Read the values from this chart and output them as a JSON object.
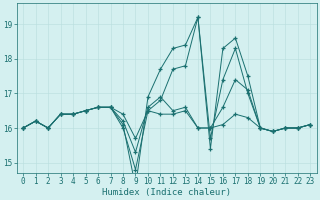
{
  "title": "",
  "xlabel": "Humidex (Indice chaleur)",
  "ylabel": "",
  "background_color": "#d4f0f0",
  "line_color": "#1a7070",
  "grid_color": "#b8dede",
  "x": [
    0,
    1,
    2,
    3,
    4,
    5,
    6,
    7,
    8,
    9,
    10,
    11,
    12,
    13,
    14,
    15,
    16,
    17,
    18,
    19,
    20,
    21,
    22,
    23
  ],
  "series": [
    [
      16.0,
      16.2,
      16.0,
      16.4,
      16.4,
      16.5,
      16.6,
      16.6,
      16.0,
      14.8,
      16.5,
      16.8,
      17.7,
      17.8,
      19.2,
      15.7,
      17.4,
      18.3,
      17.0,
      16.0,
      15.9,
      16.0,
      16.0,
      16.1
    ],
    [
      16.0,
      16.2,
      16.0,
      16.4,
      16.4,
      16.5,
      16.6,
      16.6,
      16.2,
      15.3,
      16.6,
      16.9,
      16.5,
      16.6,
      16.0,
      16.0,
      16.6,
      17.4,
      17.1,
      16.0,
      15.9,
      16.0,
      16.0,
      16.1
    ],
    [
      16.0,
      16.2,
      16.0,
      16.4,
      16.4,
      16.5,
      16.6,
      16.6,
      16.4,
      15.7,
      16.5,
      16.4,
      16.4,
      16.5,
      16.0,
      16.0,
      16.1,
      16.4,
      16.3,
      16.0,
      15.9,
      16.0,
      16.0,
      16.1
    ],
    [
      16.0,
      16.2,
      16.0,
      16.4,
      16.4,
      16.5,
      16.6,
      16.6,
      16.1,
      14.3,
      16.9,
      17.7,
      18.3,
      18.4,
      19.2,
      15.4,
      18.3,
      18.6,
      17.5,
      16.0,
      15.9,
      16.0,
      16.0,
      16.1
    ]
  ],
  "ylim": [
    14.7,
    19.6
  ],
  "yticks": [
    15,
    16,
    17,
    18,
    19
  ],
  "xtick_labels": [
    "0",
    "1",
    "2",
    "3",
    "4",
    "5",
    "6",
    "7",
    "8",
    "9",
    "10",
    "11",
    "12",
    "13",
    "14",
    "15",
    "16",
    "17",
    "18",
    "19",
    "20",
    "21",
    "22",
    "23"
  ],
  "marker": "+",
  "markersize": 3,
  "linewidth": 0.7,
  "figsize": [
    3.2,
    2.0
  ],
  "dpi": 100,
  "tick_fontsize": 5.5,
  "xlabel_fontsize": 6.5
}
